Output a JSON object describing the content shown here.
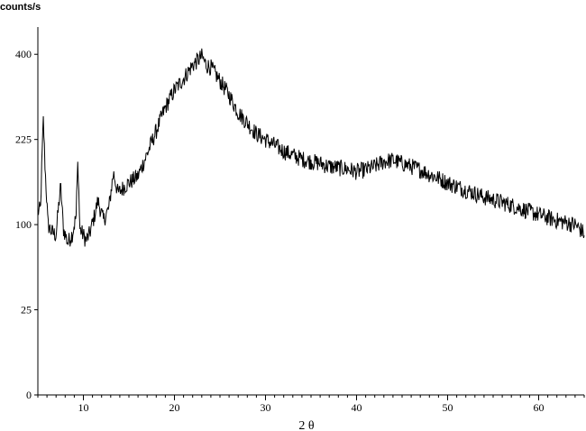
{
  "chart_data": {
    "type": "line",
    "title": "",
    "xlabel": "2 θ",
    "ylabel": "counts/s",
    "xlim": [
      5,
      65
    ],
    "y_tick_labels": [
      "0",
      "25",
      "100",
      "225",
      "400"
    ],
    "x_tick_labels": [
      "10",
      "20",
      "30",
      "40",
      "50",
      "60"
    ],
    "y_scale": "sqrt",
    "grid": false,
    "legend": "none",
    "series": [
      {
        "color": "#000000",
        "points": [
          [
            5.0,
            115
          ],
          [
            5.3,
            120
          ],
          [
            5.6,
            260
          ],
          [
            5.8,
            175
          ],
          [
            6.1,
            100
          ],
          [
            6.5,
            92
          ],
          [
            7.0,
            88
          ],
          [
            7.5,
            150
          ],
          [
            7.8,
            95
          ],
          [
            8.3,
            80
          ],
          [
            8.8,
            90
          ],
          [
            9.2,
            110
          ],
          [
            9.4,
            190
          ],
          [
            9.6,
            95
          ],
          [
            10.0,
            88
          ],
          [
            10.3,
            82
          ],
          [
            10.7,
            90
          ],
          [
            11.2,
            110
          ],
          [
            11.6,
            130
          ],
          [
            12.2,
            105
          ],
          [
            12.8,
            120
          ],
          [
            13.3,
            170
          ],
          [
            13.8,
            140
          ],
          [
            14.5,
            150
          ],
          [
            15.0,
            155
          ],
          [
            16.0,
            165
          ],
          [
            17.0,
            200
          ],
          [
            18.0,
            240
          ],
          [
            19.0,
            285
          ],
          [
            20.0,
            320
          ],
          [
            21.0,
            345
          ],
          [
            22.0,
            375
          ],
          [
            22.5,
            385
          ],
          [
            23.0,
            395
          ],
          [
            23.5,
            375
          ],
          [
            24.0,
            370
          ],
          [
            25.0,
            340
          ],
          [
            26.0,
            310
          ],
          [
            27.0,
            275
          ],
          [
            28.0,
            255
          ],
          [
            29.0,
            235
          ],
          [
            30.0,
            225
          ],
          [
            31.0,
            215
          ],
          [
            32.0,
            205
          ],
          [
            33.0,
            198
          ],
          [
            34.0,
            192
          ],
          [
            35.0,
            188
          ],
          [
            36.0,
            185
          ],
          [
            37.0,
            180
          ],
          [
            38.0,
            178
          ],
          [
            39.0,
            176
          ],
          [
            40.0,
            172
          ],
          [
            41.0,
            175
          ],
          [
            42.0,
            180
          ],
          [
            43.0,
            188
          ],
          [
            44.0,
            190
          ],
          [
            45.0,
            185
          ],
          [
            46.0,
            180
          ],
          [
            47.0,
            175
          ],
          [
            48.0,
            168
          ],
          [
            49.0,
            162
          ],
          [
            50.0,
            155
          ],
          [
            52.0,
            145
          ],
          [
            54.0,
            135
          ],
          [
            56.0,
            128
          ],
          [
            58.0,
            120
          ],
          [
            60.0,
            112
          ],
          [
            62.0,
            105
          ],
          [
            64.0,
            100
          ],
          [
            65.0,
            90
          ]
        ]
      }
    ]
  }
}
